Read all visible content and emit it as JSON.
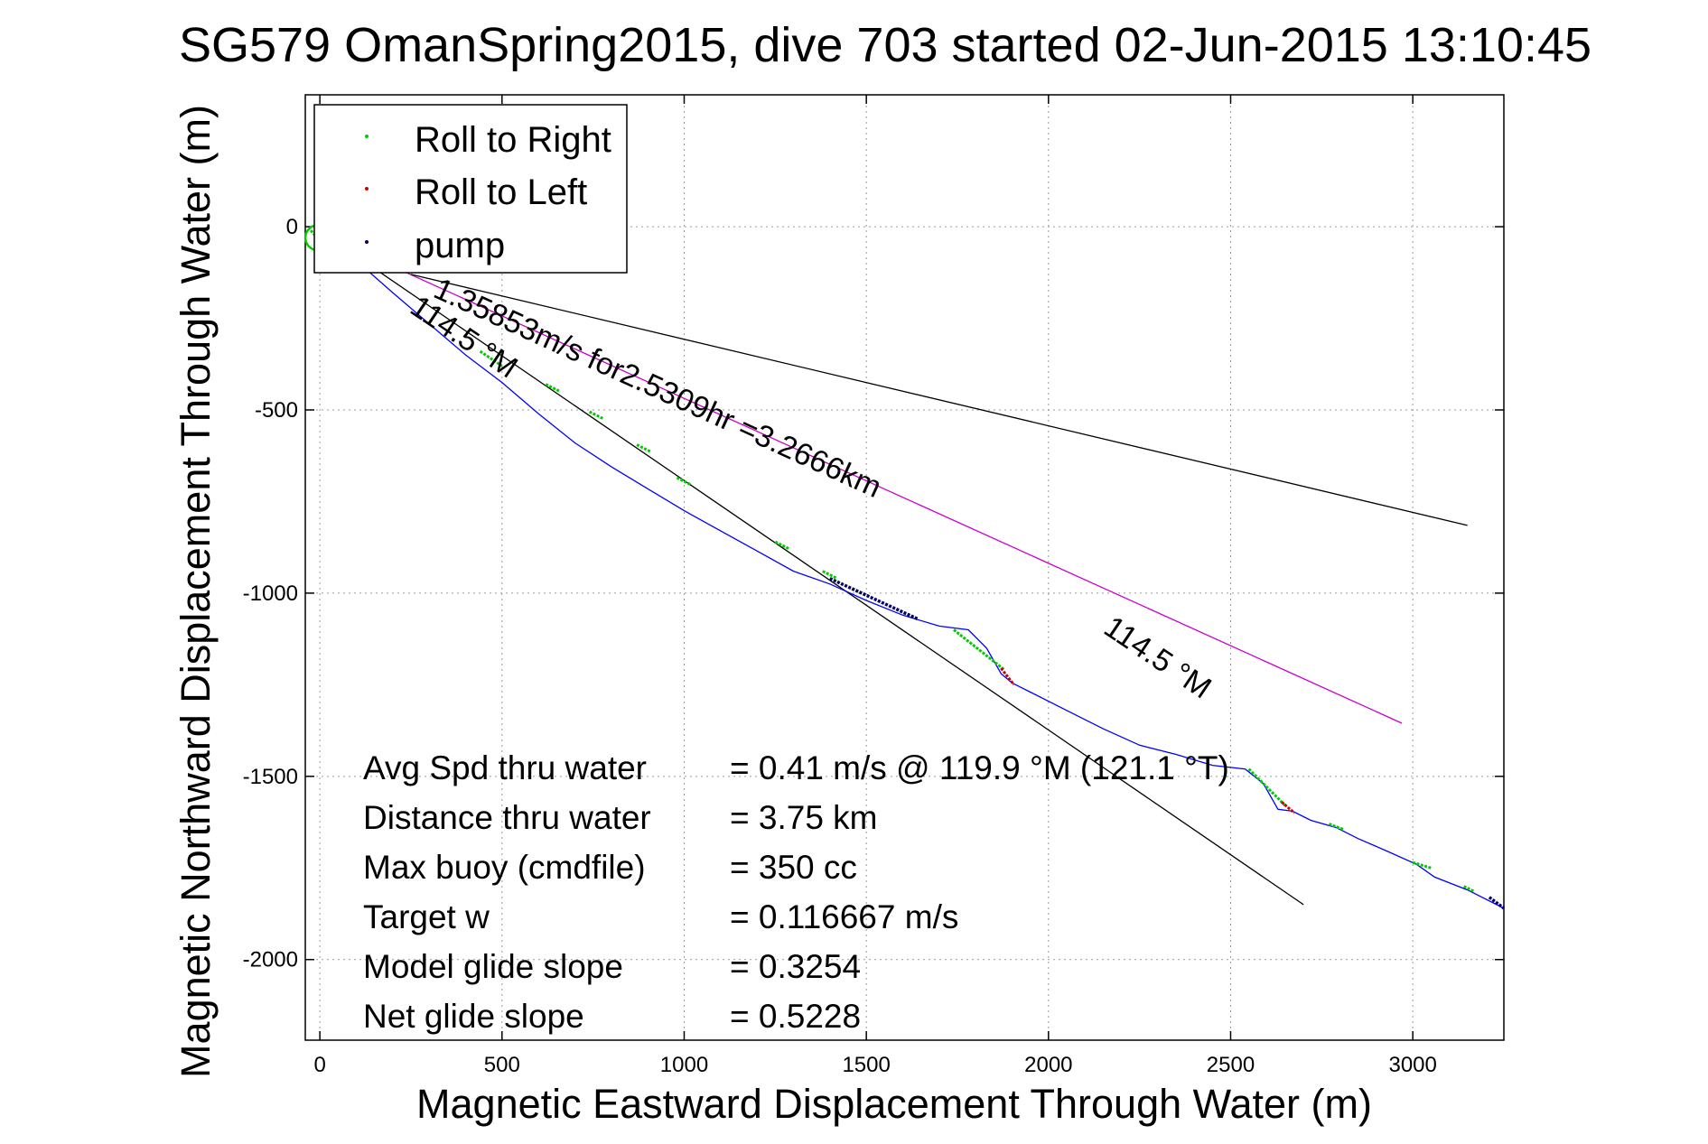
{
  "chart_data": {
    "type": "line",
    "title": "SG579 OmanSpring2015, dive 703 started 02-Jun-2015 13:10:45",
    "xlabel": "Magnetic Eastward Displacement Through Water (m)",
    "ylabel": "Magnetic Northward Displacement Through Water (m)",
    "xlim": [
      -40,
      3250
    ],
    "ylim": [
      -2220,
      360
    ],
    "xticks": [
      0,
      500,
      1000,
      1500,
      2000,
      2500,
      3000
    ],
    "yticks": [
      0,
      -500,
      -1000,
      -1500,
      -2000
    ],
    "xtick_labels": [
      "0",
      "500",
      "1000",
      "1500",
      "2000",
      "2500",
      "3000"
    ],
    "ytick_labels": [
      "0",
      "-500",
      "-1000",
      "-1500",
      "-2000"
    ],
    "grid": true,
    "legend_position": "top-left",
    "legend": [
      {
        "label": "Roll to Right",
        "color": "#00cc00"
      },
      {
        "label": "Roll to Left",
        "color": "#cc0000"
      },
      {
        "label": "pump",
        "color": "#000066"
      }
    ],
    "colors": {
      "track": "#0000ff",
      "roll_right": "#00cc00",
      "roll_left": "#cc0000",
      "pump": "#000066",
      "current_line": "#cc00cc",
      "reference_line": "#000000"
    },
    "track": {
      "x": [
        -5,
        50,
        120,
        200,
        300,
        400,
        500,
        600,
        700,
        800,
        900,
        1000,
        1100,
        1200,
        1300,
        1400,
        1500,
        1600,
        1700,
        1780,
        1830,
        1870,
        1900,
        1950,
        2050,
        2150,
        2250,
        2350,
        2450,
        2540,
        2590,
        2630,
        2670,
        2720,
        2790,
        2850,
        2920,
        3010,
        3060,
        3150,
        3250
      ],
      "y": [
        0,
        -60,
        -110,
        -180,
        -265,
        -350,
        -425,
        -510,
        -590,
        -655,
        -715,
        -775,
        -830,
        -885,
        -940,
        -975,
        -1020,
        -1060,
        -1090,
        -1100,
        -1150,
        -1220,
        -1245,
        -1270,
        -1320,
        -1370,
        -1415,
        -1440,
        -1470,
        -1480,
        -1520,
        -1590,
        -1595,
        -1620,
        -1640,
        -1670,
        -1700,
        -1740,
        -1775,
        -1810,
        -1860
      ]
    },
    "start_loop": {
      "x": -5,
      "y": -30
    },
    "roll_right_segments": [
      {
        "x": [
          -25,
          20
        ],
        "y": [
          -10,
          -60
        ]
      },
      {
        "x": [
          440,
          500
        ],
        "y": [
          -340,
          -380
        ]
      },
      {
        "x": [
          620,
          660
        ],
        "y": [
          -430,
          -450
        ]
      },
      {
        "x": [
          740,
          780
        ],
        "y": [
          -505,
          -525
        ]
      },
      {
        "x": [
          870,
          910
        ],
        "y": [
          -595,
          -615
        ]
      },
      {
        "x": [
          980,
          1020
        ],
        "y": [
          -685,
          -705
        ]
      },
      {
        "x": [
          1250,
          1290
        ],
        "y": [
          -860,
          -880
        ]
      },
      {
        "x": [
          1380,
          1420
        ],
        "y": [
          -940,
          -960
        ]
      },
      {
        "x": [
          1740,
          1880
        ],
        "y": [
          -1100,
          -1210
        ]
      },
      {
        "x": [
          2550,
          2650
        ],
        "y": [
          -1480,
          -1580
        ]
      },
      {
        "x": [
          2770,
          2810
        ],
        "y": [
          -1630,
          -1645
        ]
      },
      {
        "x": [
          3000,
          3050
        ],
        "y": [
          -1735,
          -1750
        ]
      },
      {
        "x": [
          3140,
          3170
        ],
        "y": [
          -1800,
          -1815
        ]
      }
    ],
    "roll_left_segments": [
      {
        "x": [
          1870,
          1905
        ],
        "y": [
          -1205,
          -1250
        ]
      },
      {
        "x": [
          2640,
          2675
        ],
        "y": [
          -1570,
          -1600
        ]
      }
    ],
    "pump_segments": [
      {
        "x": [
          1400,
          1640
        ],
        "y": [
          -960,
          -1070
        ]
      },
      {
        "x": [
          3210,
          3250
        ],
        "y": [
          -1830,
          -1860
        ]
      }
    ],
    "lines": [
      {
        "name": "current",
        "x": [
          70,
          2970
        ],
        "y": [
          -50,
          -1355
        ],
        "color": "#cc00cc"
      },
      {
        "name": "heading-reference",
        "x": [
          100,
          2700
        ],
        "y": [
          -80,
          -1850
        ],
        "color": "#000000"
      },
      {
        "name": "upper-reference",
        "x": [
          250,
          3150
        ],
        "y": [
          -130,
          -815
        ],
        "color": "#000000"
      }
    ],
    "annotations": {
      "current_label": "1.35853m/s for2.5309hr =3.2666km",
      "heading_label_top": "114.5 °M",
      "heading_label_right": "114.5 °M"
    },
    "stats": [
      {
        "label": "Avg Spd thru water",
        "value": "=  0.41 m/s @ 119.9 °M (121.1 °T)"
      },
      {
        "label": "Distance thru water",
        "value": "=  3.75 km"
      },
      {
        "label": "Max buoy (cmdfile)",
        "value": "= 350 cc"
      },
      {
        "label": "Target w",
        "value": "= 0.116667 m/s"
      },
      {
        "label": "Model glide slope",
        "value": "= 0.3254"
      },
      {
        "label": "Net glide slope",
        "value": "= 0.5228"
      }
    ]
  }
}
